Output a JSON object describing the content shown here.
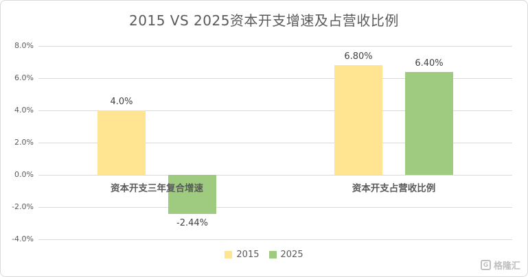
{
  "title": "2015 VS 2025资本开支增速及占营收比例",
  "chart_data": {
    "type": "bar",
    "title": "2015 VS 2025资本开支增速及占营收比例",
    "categories": [
      "资本开支三年复合增速",
      "资本开支占营收比例"
    ],
    "series": [
      {
        "name": "2015",
        "color": "#FFE492",
        "values": [
          4.0,
          6.8
        ],
        "labels": [
          "4.0%",
          "6.80%"
        ]
      },
      {
        "name": "2025",
        "color": "#9FCB80",
        "values": [
          -2.44,
          6.4
        ],
        "labels": [
          "-2.44%",
          "6.40%"
        ]
      }
    ],
    "ylim": [
      -4,
      8
    ],
    "ytick_step": 2,
    "ytick_labels": [
      "8.0%",
      "6.0%",
      "4.0%",
      "2.0%",
      "0.0%",
      "-2.0%",
      "-4.0%"
    ],
    "grid": true,
    "legend_position": "bottom"
  },
  "legend": {
    "items": [
      {
        "label": "2015",
        "color": "#FFE492"
      },
      {
        "label": "2025",
        "color": "#9FCB80"
      }
    ]
  },
  "watermark": {
    "icon_letter": "G",
    "text": "格隆汇"
  }
}
